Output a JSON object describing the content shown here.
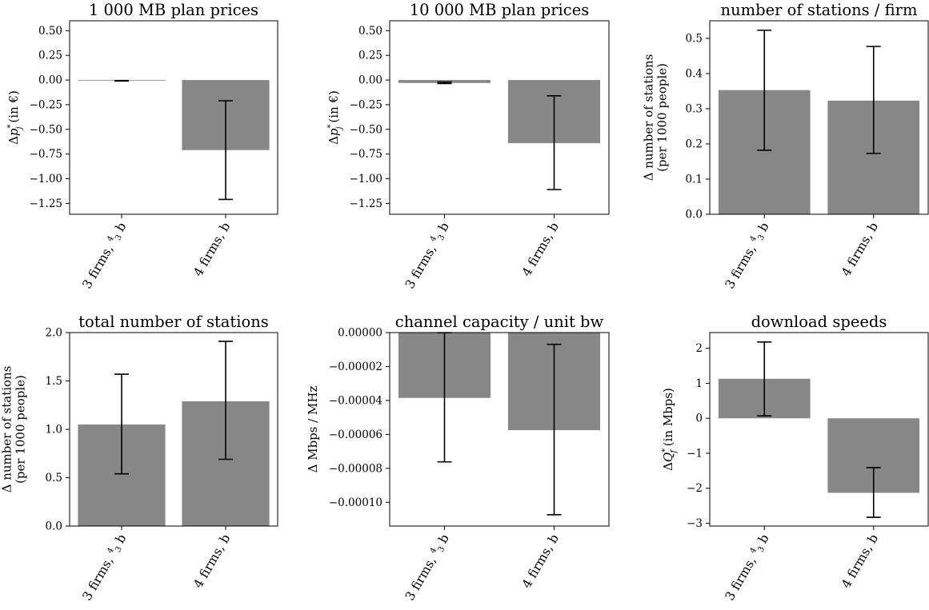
{
  "style": {
    "bar_color": "#878787",
    "error_color": "#000000",
    "axis_color": "#000000"
  },
  "chart_data": [
    {
      "type": "bar",
      "title": "1 000 MB plan prices",
      "ylabel": [
        "Δp_j^* (in €)"
      ],
      "ylabel_parts": {
        "pre": "Δ",
        "var": "p",
        "sub": "j",
        "sup": "*",
        "post": " (in €)"
      },
      "categories": [
        "3 firms, 4/3 b",
        "4 firms, b"
      ],
      "values": [
        -0.005,
        -0.71
      ],
      "err_low": [
        -0.01,
        -1.21
      ],
      "err_high": [
        -0.005,
        -0.21
      ],
      "ylim": [
        -1.36,
        0.6
      ],
      "yticks": [
        0.5,
        0.25,
        0.0,
        -0.25,
        -0.5,
        -0.75,
        -1.0,
        -1.25
      ],
      "ytick_labels": [
        "0.50",
        "0.25",
        "0.00",
        "−0.25",
        "−0.50",
        "−0.75",
        "−1.00",
        "−1.25"
      ]
    },
    {
      "type": "bar",
      "title": "10 000 MB plan prices",
      "ylabel": [
        "Δp_j^* (in €)"
      ],
      "ylabel_parts": {
        "pre": "Δ",
        "var": "p",
        "sub": "j",
        "sup": "*",
        "post": " (in €)"
      },
      "categories": [
        "3 firms, 4/3 b",
        "4 firms, b"
      ],
      "values": [
        -0.03,
        -0.64
      ],
      "err_low": [
        -0.035,
        -1.11
      ],
      "err_high": [
        -0.02,
        -0.16
      ],
      "ylim": [
        -1.36,
        0.6
      ],
      "yticks": [
        0.5,
        0.25,
        0.0,
        -0.25,
        -0.5,
        -0.75,
        -1.0,
        -1.25
      ],
      "ytick_labels": [
        "0.50",
        "0.25",
        "0.00",
        "−0.25",
        "−0.50",
        "−0.75",
        "−1.00",
        "−1.25"
      ]
    },
    {
      "type": "bar",
      "title": "number of stations / firm",
      "ylabel": [
        "Δ number of stations",
        "(per 1000 people)"
      ],
      "categories": [
        "3 firms, 4/3 b",
        "4 firms, b"
      ],
      "values": [
        0.353,
        0.323
      ],
      "err_low": [
        0.182,
        0.173
      ],
      "err_high": [
        0.523,
        0.477
      ],
      "ylim": [
        0,
        0.55
      ],
      "yticks": [
        0.0,
        0.1,
        0.2,
        0.3,
        0.4,
        0.5
      ],
      "ytick_labels": [
        "0.0",
        "0.1",
        "0.2",
        "0.3",
        "0.4",
        "0.5"
      ]
    },
    {
      "type": "bar",
      "title": "total number of stations",
      "ylabel": [
        "Δ number of stations",
        "(per 1000 people)"
      ],
      "categories": [
        "3 firms, 4/3 b",
        "4 firms, b"
      ],
      "values": [
        1.05,
        1.29
      ],
      "err_low": [
        0.54,
        0.69
      ],
      "err_high": [
        1.57,
        1.91
      ],
      "ylim": [
        0,
        2.0
      ],
      "yticks": [
        0.0,
        0.5,
        1.0,
        1.5,
        2.0
      ],
      "ytick_labels": [
        "0.0",
        "0.5",
        "1.0",
        "1.5",
        "2.0"
      ]
    },
    {
      "type": "bar",
      "title": "channel capacity / unit bw",
      "ylabel": [
        "Δ Mbps / MHz"
      ],
      "categories": [
        "3 firms, 4/3 b",
        "4 firms, b"
      ],
      "values": [
        -3.85e-05,
        -5.75e-05
      ],
      "err_low": [
        -7.62e-05,
        -0.0001073
      ],
      "err_high": [
        -1e-07,
        -6.9e-06
      ],
      "ylim": [
        -0.000114,
        0.0
      ],
      "yticks": [
        0.0,
        -2e-05,
        -4e-05,
        -6e-05,
        -8e-05,
        -0.0001
      ],
      "ytick_labels": [
        "0.00000",
        "−0.00002",
        "−0.00004",
        "−0.00006",
        "−0.00008",
        "−0.00010"
      ]
    },
    {
      "type": "bar",
      "title": "download speeds",
      "ylabel": [
        "ΔQ_f^* (in Mbps)"
      ],
      "ylabel_parts": {
        "pre": "Δ",
        "var": "Q",
        "sub": "f",
        "sup": "*",
        "post": " (in Mbps)"
      },
      "categories": [
        "3 firms, 4/3 b",
        "4 firms, b"
      ],
      "values": [
        1.13,
        -2.13
      ],
      "err_low": [
        0.07,
        -2.83
      ],
      "err_high": [
        2.18,
        -1.41
      ],
      "ylim": [
        -3.08,
        2.45
      ],
      "yticks": [
        2,
        1,
        0,
        -1,
        -2,
        -3
      ],
      "ytick_labels": [
        "2",
        "1",
        "0",
        "−1",
        "−2",
        "−3"
      ]
    }
  ]
}
